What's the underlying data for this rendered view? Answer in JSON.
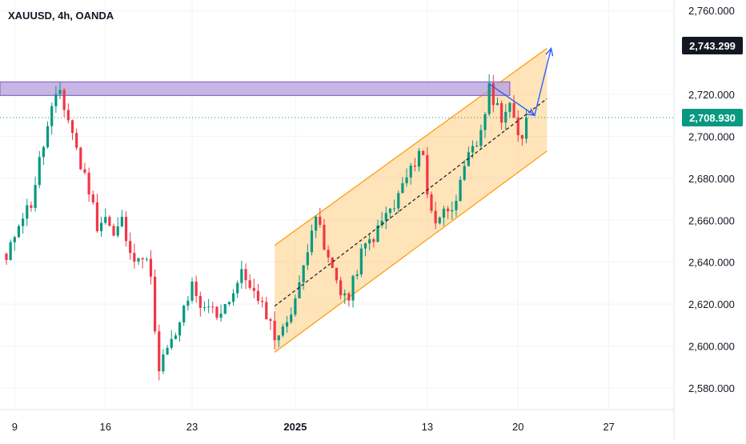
{
  "chart_data": {
    "type": "line",
    "title": "XAUUSD, 4h, OANDA",
    "colors": {
      "up": "#089981",
      "down": "#f23645",
      "supply_zone": "#b39ddb",
      "channel_fill": "#ffcc80",
      "channel_line": "#ff9800",
      "projection": "#2962ff",
      "current_price_line": "#089981"
    },
    "y_axis": {
      "ylim": [
        2575,
        2762
      ],
      "ticks": [
        {
          "value": 2760,
          "label": "2,760.000"
        },
        {
          "value": 2720,
          "label": "2,720.000"
        },
        {
          "value": 2700,
          "label": "2,700.000"
        },
        {
          "value": 2680,
          "label": "2,680.000"
        },
        {
          "value": 2660,
          "label": "2,660.000"
        },
        {
          "value": 2640,
          "label": "2,640.000"
        },
        {
          "value": 2620,
          "label": "2,620.000"
        },
        {
          "value": 2600,
          "label": "2,600.000"
        },
        {
          "value": 2580,
          "label": "2,580.000"
        }
      ]
    },
    "x_axis": {
      "xlim": [
        0,
        161
      ],
      "ticks": [
        {
          "value": 2,
          "label": "9",
          "bold": false
        },
        {
          "value": 24,
          "label": "16",
          "bold": false
        },
        {
          "value": 45,
          "label": "23",
          "bold": false
        },
        {
          "value": 70,
          "label": "2025",
          "bold": true
        },
        {
          "value": 102,
          "label": "13",
          "bold": false
        },
        {
          "value": 124,
          "label": "20",
          "bold": false
        },
        {
          "value": 146,
          "label": "27",
          "bold": false
        }
      ]
    },
    "price_badges": [
      {
        "value": 2743.299,
        "label": "2,743.299",
        "style": "dark"
      },
      {
        "value": 2708.93,
        "label": "2,708.930",
        "style": "green"
      }
    ],
    "current_price": 2708.93,
    "supply_zone": {
      "x0": 0,
      "x1": 122,
      "y_low": 2719.5,
      "y_high": 2726
    },
    "channel": {
      "x0": 65,
      "x1": 131,
      "upper": [
        2648,
        2742
      ],
      "lower": [
        2597,
        2693
      ],
      "mid": [
        2619,
        2718
      ]
    },
    "projection": [
      {
        "x": 117,
        "y": 2725
      },
      {
        "x": 128,
        "y": 2710
      },
      {
        "x": 132,
        "y": 2742
      }
    ],
    "series": [
      {
        "type": "candlestick",
        "anchors": [
          [
            0,
            2640
          ],
          [
            3,
            2660
          ],
          [
            6,
            2668
          ],
          [
            8,
            2688
          ],
          [
            11,
            2712
          ],
          [
            13,
            2722
          ],
          [
            14,
            2714
          ],
          [
            16,
            2702
          ],
          [
            18,
            2686
          ],
          [
            20,
            2675
          ],
          [
            22,
            2658
          ],
          [
            24,
            2662
          ],
          [
            26,
            2652
          ],
          [
            28,
            2660
          ],
          [
            30,
            2642
          ],
          [
            32,
            2645
          ],
          [
            35,
            2636
          ],
          [
            36,
            2605
          ],
          [
            37,
            2587
          ],
          [
            39,
            2600
          ],
          [
            41,
            2603
          ],
          [
            43,
            2618
          ],
          [
            45,
            2628
          ],
          [
            47,
            2616
          ],
          [
            49,
            2619
          ],
          [
            51,
            2615
          ],
          [
            53,
            2620
          ],
          [
            55,
            2626
          ],
          [
            57,
            2634
          ],
          [
            59,
            2630
          ],
          [
            61,
            2620
          ],
          [
            63,
            2616
          ],
          [
            65,
            2605
          ],
          [
            67,
            2607
          ],
          [
            69,
            2618
          ],
          [
            71,
            2628
          ],
          [
            74,
            2658
          ],
          [
            75,
            2663
          ],
          [
            77,
            2646
          ],
          [
            79,
            2636
          ],
          [
            81,
            2627
          ],
          [
            83,
            2622
          ],
          [
            84,
            2630
          ],
          [
            86,
            2644
          ],
          [
            88,
            2650
          ],
          [
            90,
            2655
          ],
          [
            92,
            2663
          ],
          [
            94,
            2666
          ],
          [
            96,
            2677
          ],
          [
            98,
            2683
          ],
          [
            100,
            2694
          ],
          [
            101,
            2690
          ],
          [
            102,
            2672
          ],
          [
            104,
            2660
          ],
          [
            106,
            2664
          ],
          [
            108,
            2668
          ],
          [
            110,
            2676
          ],
          [
            112,
            2690
          ],
          [
            114,
            2696
          ],
          [
            116,
            2712
          ],
          [
            117,
            2722
          ],
          [
            118,
            2718
          ],
          [
            120,
            2710
          ],
          [
            122,
            2715
          ],
          [
            123,
            2706
          ],
          [
            124,
            2699
          ],
          [
            125,
            2700
          ],
          [
            126,
            2709
          ]
        ]
      }
    ]
  }
}
